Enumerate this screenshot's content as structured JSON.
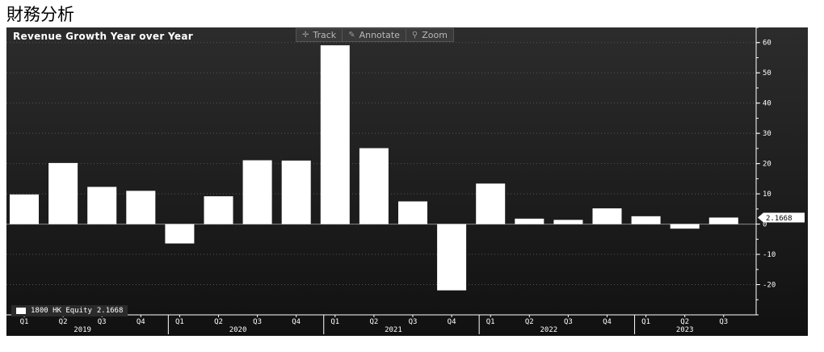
{
  "page": {
    "title": "財務分析"
  },
  "toolbar": {
    "track_label": "Track",
    "annotate_label": "Annotate",
    "zoom_label": "Zoom"
  },
  "chart_data": {
    "type": "bar",
    "title": "Revenue Growth Year over Year",
    "categories": [
      "Q1",
      "Q2",
      "Q3",
      "Q4",
      "Q1",
      "Q2",
      "Q3",
      "Q4",
      "Q1",
      "Q2",
      "Q3",
      "Q4",
      "Q1",
      "Q2",
      "Q3",
      "Q4",
      "Q1",
      "Q2",
      "Q3"
    ],
    "years": [
      {
        "label": "2019",
        "start": 0,
        "end": 3
      },
      {
        "label": "2020",
        "start": 4,
        "end": 7
      },
      {
        "label": "2021",
        "start": 8,
        "end": 11
      },
      {
        "label": "2022",
        "start": 12,
        "end": 15
      },
      {
        "label": "2023",
        "start": 16,
        "end": 18
      }
    ],
    "series": [
      {
        "name": "1800 HK Equity",
        "values": [
          9.8,
          20.2,
          12.3,
          11.0,
          -6.4,
          9.2,
          21.1,
          21.0,
          59.1,
          25.1,
          7.5,
          -21.9,
          13.4,
          1.8,
          1.4,
          5.2,
          2.6,
          -1.5,
          2.1668
        ]
      }
    ],
    "legend": {
      "label": "1800 HK Equity",
      "value": "2.1668",
      "placement": "bottom-left"
    },
    "last_value_label": "2.1668",
    "ylim": [
      -30,
      65
    ],
    "yticks": [
      60,
      50,
      40,
      30,
      20,
      10,
      0,
      -10,
      -20
    ],
    "grid": true,
    "colors": {
      "bar": "#ffffff",
      "background": "#111111",
      "axis": "#ffffff",
      "grid": "#555555"
    }
  }
}
